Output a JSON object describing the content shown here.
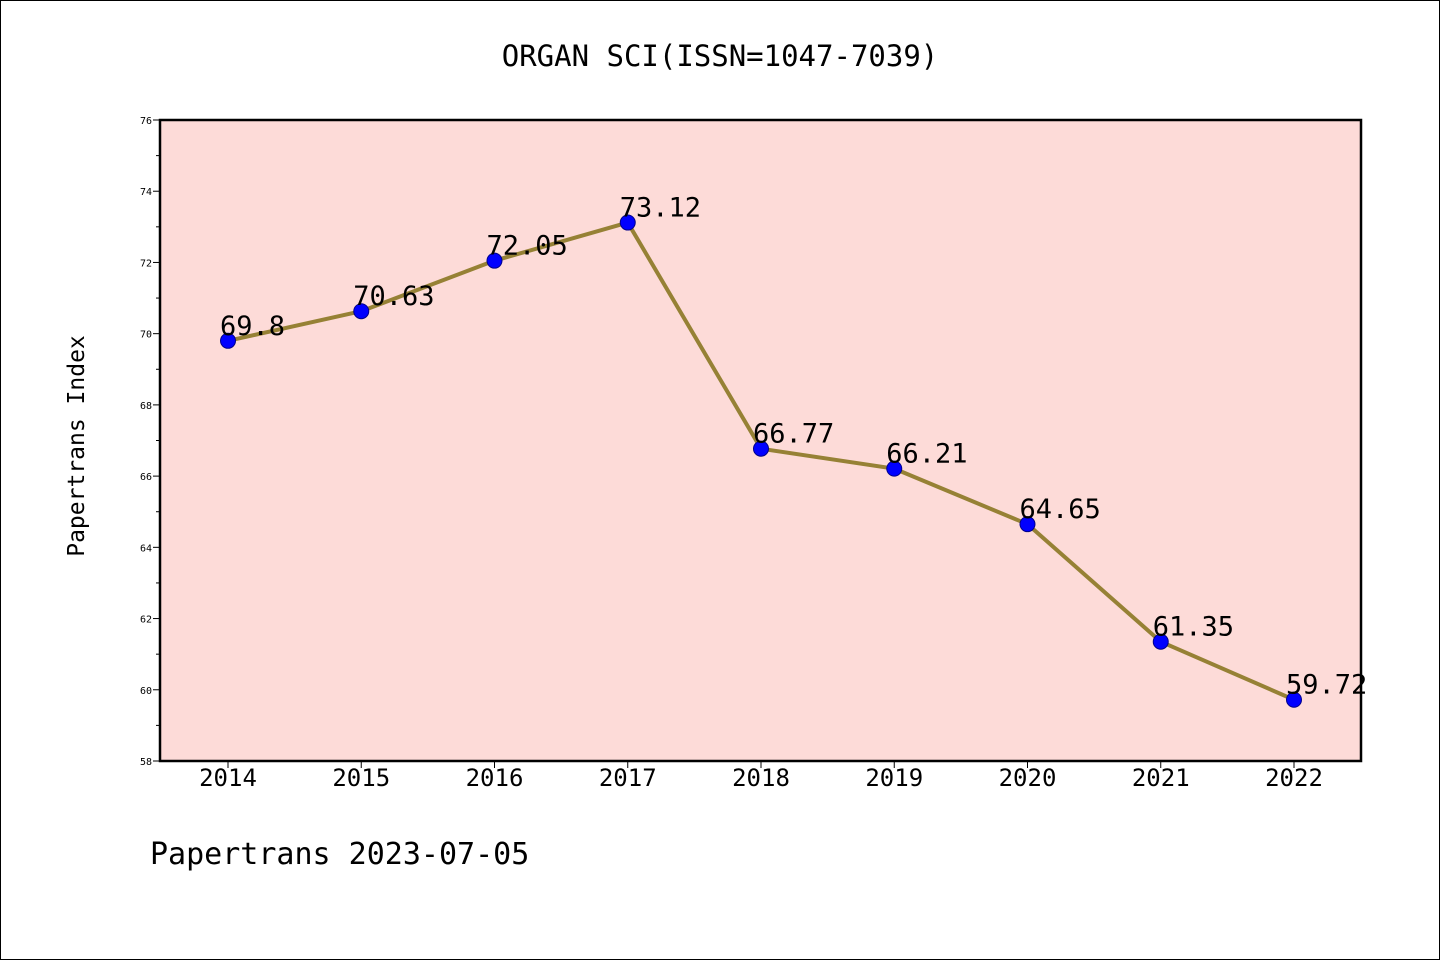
{
  "chart_data": {
    "type": "line",
    "title": "ORGAN SCI(ISSN=1047-7039)",
    "xlabel": "",
    "ylabel": "Papertrans Index",
    "categories": [
      "2014",
      "2015",
      "2016",
      "2017",
      "2018",
      "2019",
      "2020",
      "2021",
      "2022"
    ],
    "series": [
      {
        "values": [
          69.8,
          70.63,
          72.05,
          73.12,
          66.77,
          66.21,
          64.65,
          61.35,
          59.72
        ],
        "data_labels": [
          "69.8",
          "70.63",
          "72.05",
          "73.12",
          "66.77",
          "66.21",
          "64.65",
          "61.35",
          "59.72"
        ]
      }
    ],
    "ylim": [
      58,
      76
    ],
    "yticks": [
      "58",
      "60",
      "62",
      "64",
      "66",
      "68",
      "70",
      "72",
      "74",
      "76"
    ],
    "grid": false,
    "legend": "none"
  },
  "colors": {
    "plot_background": "#fddbd8",
    "line": "#968135",
    "marker": "#0000ff"
  },
  "footer": {
    "text": "Papertrans 2023-07-05"
  }
}
